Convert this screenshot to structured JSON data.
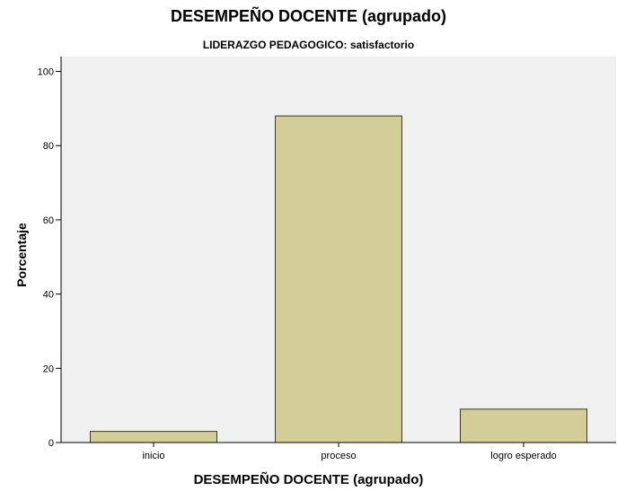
{
  "chart_data": {
    "type": "bar",
    "title": "DESEMPEÑO DOCENTE (agrupado)",
    "subtitle": "LIDERAZGO PEDAGOGICO: satisfactorio",
    "xlabel": "DESEMPEÑO DOCENTE (agrupado)",
    "ylabel": "Porcentaje",
    "categories": [
      "inicio",
      "proceso",
      "logro esperado"
    ],
    "values": [
      3.0,
      88.0,
      9.0
    ],
    "ylim": [
      0,
      104
    ],
    "yticks": [
      0,
      20,
      40,
      60,
      80,
      100
    ],
    "grid": false,
    "legend": "none",
    "colors": {
      "plot_background": "#f0f0f0",
      "bar_fill": "#d3ce97",
      "bar_stroke": "#3a3a2a"
    }
  }
}
